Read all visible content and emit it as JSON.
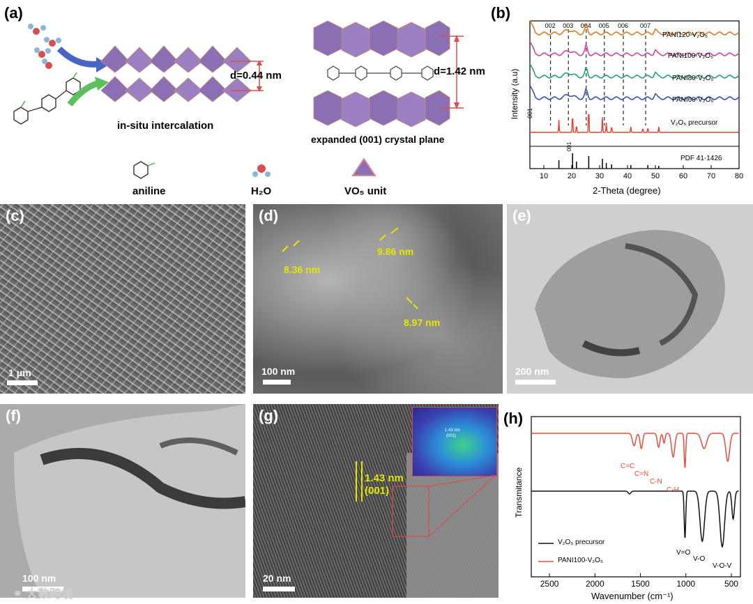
{
  "panel_a": {
    "label": "(a)",
    "caption_left": "in-situ intercalation",
    "d_left": "d=0.44 nm",
    "caption_right": "expanded (001) crystal plane",
    "d_right": "d=1.42 nm",
    "legend": {
      "aniline": "aniline",
      "h2o": "H₂O",
      "vo5": "VO₅ unit"
    }
  },
  "panel_b": {
    "label": "(b)",
    "ylabel": "Intensity (a.u)",
    "xlabel": "2-Theta (degree)",
    "peak_labels": [
      "001",
      "002",
      "003",
      "004",
      "005",
      "006",
      "007"
    ],
    "series_labels": [
      "PANI120-V₂O₅",
      "PANI100-V₂O₅",
      "PANI80-V₂O₅",
      "PANI60-V₂O₅",
      "V₂O₅ precursor"
    ],
    "pdf_label": "PDF 41-1426",
    "pdf_peak_label": "001",
    "pdf_annot": "001",
    "xticks": [
      "10",
      "20",
      "30",
      "40",
      "50",
      "60",
      "70",
      "80"
    ]
  },
  "panel_c": {
    "label": "(c)",
    "scale": "1 μm"
  },
  "panel_d": {
    "label": "(d)",
    "scale": "100 nm",
    "measures": [
      "8.36 nm",
      "9.86 nm",
      "8.97 nm"
    ]
  },
  "panel_e": {
    "label": "(e)",
    "scale": "200 nm"
  },
  "panel_f": {
    "label": "(f)",
    "scale": "100 nm"
  },
  "panel_g": {
    "label": "(g)",
    "scale": "20 nm",
    "spacing": "1.43 nm",
    "plane": "(001)",
    "inset_spacing": "1.43 nm",
    "inset_plane": "(001)"
  },
  "panel_h": {
    "label": "(h)",
    "ylabel": "Transmitance",
    "xlabel": "Wavenumber (cm⁻¹)",
    "xticks": [
      "2500",
      "2000",
      "1500",
      "1000",
      "500"
    ],
    "bond_labels": [
      "C=C",
      "C=N",
      "C-N",
      "C-H",
      "V=O",
      "V-O",
      "V-O-V"
    ],
    "legend": [
      "V₂O₅ precursor",
      "PANI100-V₂O₅"
    ]
  },
  "watermark": "大数跨境",
  "colors": {
    "pani120": "#e07a1e",
    "pani100": "#d6419a",
    "pani80": "#22a36b",
    "pani60": "#3a4fb8",
    "precursor": "#e8402a",
    "ftir_red": "#ea4a3c",
    "ftir_black": "#111111",
    "label_yellow": "#e6e600",
    "crystal_purple": "#8a6fb5"
  }
}
